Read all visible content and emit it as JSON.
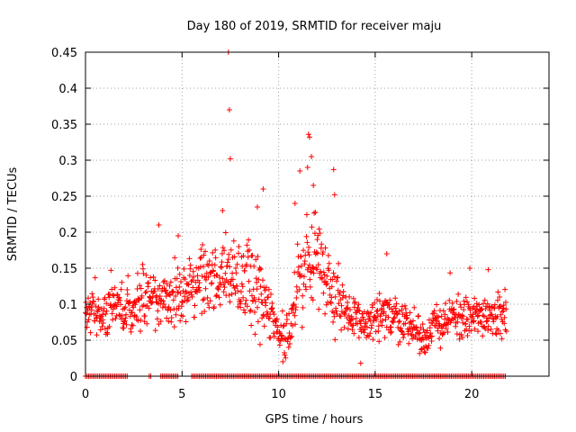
{
  "chart_data": {
    "type": "scatter",
    "title": "Day 180 of 2019, SRMTID for receiver maju",
    "xlabel": "GPS time / hours",
    "ylabel": "SRMTID / TECUs",
    "xlim": [
      0,
      24
    ],
    "ylim": [
      0,
      0.45
    ],
    "x_ticks": [
      0,
      5,
      10,
      15,
      20
    ],
    "x_tick_labels": [
      "0",
      "5",
      "10",
      "15",
      "20"
    ],
    "y_ticks": [
      0,
      0.05,
      0.1,
      0.15,
      0.2,
      0.25,
      0.3,
      0.35,
      0.4,
      0.45
    ],
    "y_tick_labels": [
      "0",
      "0.05",
      "0.1",
      "0.15",
      "0.2",
      "0.25",
      "0.3",
      "0.35",
      "0.4",
      "0.45"
    ],
    "grid": true,
    "marker": "+",
    "marker_color": "#ff0000",
    "series": [
      {
        "name": "SRMTID",
        "color": "#ff0000",
        "generator": {
          "x_start": 0.0,
          "x_end": 21.8,
          "step": 0.02,
          "seed": 180,
          "baseline_profile": [
            [
              0.0,
              0.085
            ],
            [
              1.0,
              0.09
            ],
            [
              2.0,
              0.095
            ],
            [
              3.0,
              0.11
            ],
            [
              4.0,
              0.105
            ],
            [
              5.0,
              0.11
            ],
            [
              6.0,
              0.13
            ],
            [
              7.0,
              0.14
            ],
            [
              8.0,
              0.13
            ],
            [
              9.0,
              0.12
            ],
            [
              10.0,
              0.06
            ],
            [
              10.5,
              0.055
            ],
            [
              11.0,
              0.12
            ],
            [
              11.5,
              0.16
            ],
            [
              12.0,
              0.17
            ],
            [
              12.5,
              0.14
            ],
            [
              13.0,
              0.11
            ],
            [
              14.0,
              0.075
            ],
            [
              15.0,
              0.075
            ],
            [
              16.0,
              0.085
            ],
            [
              17.0,
              0.065
            ],
            [
              17.5,
              0.05
            ],
            [
              18.0,
              0.07
            ],
            [
              19.0,
              0.08
            ],
            [
              20.0,
              0.08
            ],
            [
              21.0,
              0.09
            ],
            [
              21.8,
              0.075
            ]
          ],
          "spread_profile": [
            [
              0.0,
              0.025
            ],
            [
              3.0,
              0.03
            ],
            [
              6.5,
              0.04
            ],
            [
              9.0,
              0.045
            ],
            [
              10.0,
              0.015
            ],
            [
              11.0,
              0.055
            ],
            [
              12.5,
              0.045
            ],
            [
              13.5,
              0.025
            ],
            [
              15.0,
              0.03
            ],
            [
              17.5,
              0.02
            ],
            [
              19.0,
              0.025
            ],
            [
              21.8,
              0.025
            ]
          ]
        },
        "outliers": [
          {
            "x": 7.4,
            "y": 0.45
          },
          {
            "x": 7.45,
            "y": 0.37
          },
          {
            "x": 7.5,
            "y": 0.302
          },
          {
            "x": 9.2,
            "y": 0.26
          },
          {
            "x": 11.55,
            "y": 0.336
          },
          {
            "x": 11.6,
            "y": 0.332
          },
          {
            "x": 11.7,
            "y": 0.305
          },
          {
            "x": 11.5,
            "y": 0.29
          },
          {
            "x": 11.1,
            "y": 0.285
          },
          {
            "x": 12.85,
            "y": 0.287
          },
          {
            "x": 11.8,
            "y": 0.265
          },
          {
            "x": 12.9,
            "y": 0.252
          },
          {
            "x": 10.85,
            "y": 0.24
          },
          {
            "x": 7.1,
            "y": 0.23
          },
          {
            "x": 8.9,
            "y": 0.235
          },
          {
            "x": 3.8,
            "y": 0.21
          },
          {
            "x": 4.8,
            "y": 0.195
          },
          {
            "x": 14.25,
            "y": 0.018
          },
          {
            "x": 20.85,
            "y": 0.148
          },
          {
            "x": 19.9,
            "y": 0.15
          },
          {
            "x": 15.6,
            "y": 0.17
          }
        ]
      }
    ],
    "zero_markers": {
      "y": 0,
      "segments": [
        [
          0.0,
          2.2
        ],
        [
          3.3,
          3.4
        ],
        [
          3.9,
          4.8
        ],
        [
          5.5,
          21.8
        ]
      ],
      "step": 0.08
    }
  }
}
